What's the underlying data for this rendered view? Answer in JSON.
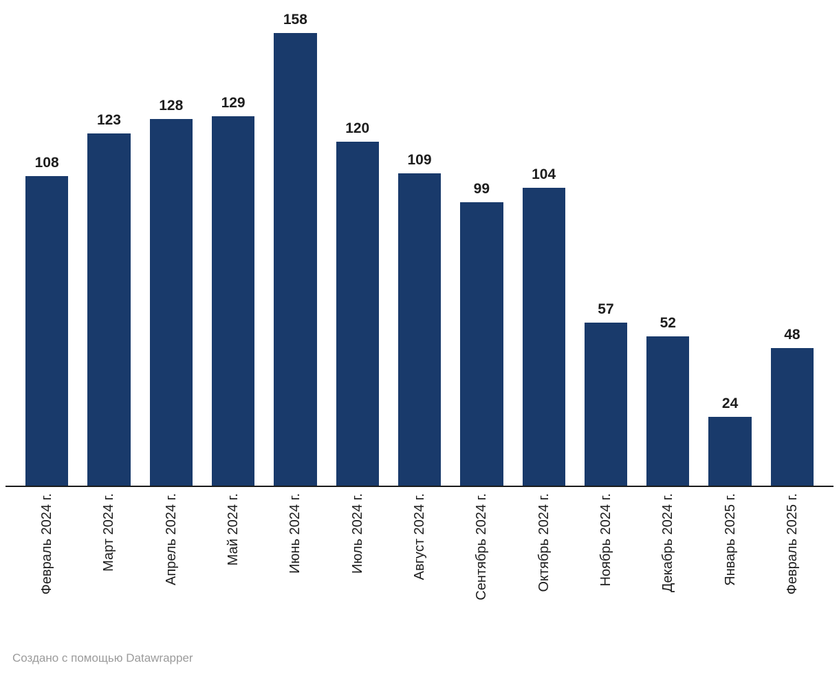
{
  "chart_data": {
    "type": "bar",
    "categories": [
      "Февраль 2024 г.",
      "Март 2024 г.",
      "Апрель 2024 г.",
      "Май 2024 г.",
      "Июнь 2024 г.",
      "Июль 2024 г.",
      "Август 2024 г.",
      "Сентябрь 2024 г.",
      "Октябрь 2024 г.",
      "Ноябрь 2024 г.",
      "Декабрь 2024 г.",
      "Январь 2025 г.",
      "Февраль 2025 г."
    ],
    "values": [
      108,
      123,
      128,
      129,
      158,
      120,
      109,
      99,
      104,
      57,
      52,
      24,
      48
    ],
    "title": "",
    "xlabel": "",
    "ylabel": "",
    "ylim": [
      0,
      158
    ],
    "grid": false,
    "legend": false,
    "value_labels_shown": true,
    "x_labels_rotated_degrees": 90
  },
  "colors": {
    "bar": "#193a6b",
    "axis": "#1a1a1a",
    "label": "#1d1d1d",
    "footer": "#9b9b9b"
  },
  "footer": {
    "text": "Создано с помощью Datawrapper"
  }
}
